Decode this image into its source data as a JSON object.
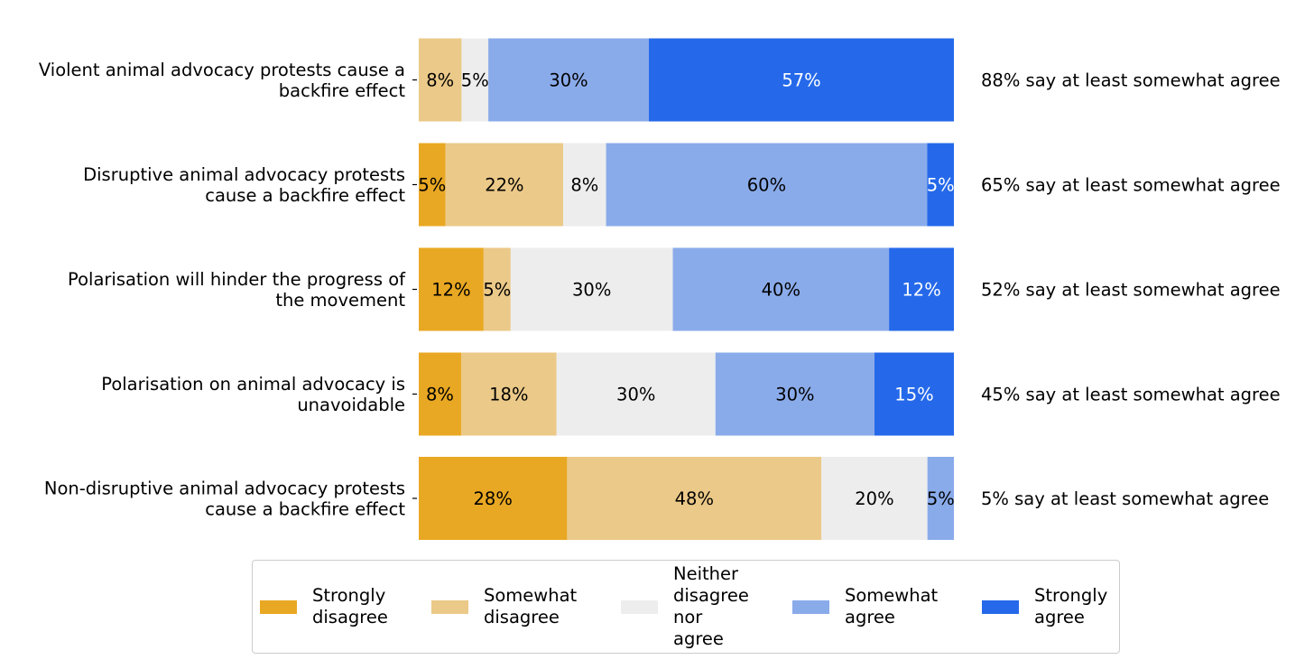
{
  "chart_data": {
    "type": "bar",
    "orientation": "horizontal",
    "stacked": true,
    "title": "",
    "xlabel": "",
    "ylabel": "",
    "xlim": [
      0,
      100
    ],
    "grid": false,
    "legend_position": "bottom-center",
    "categories": [
      "Violent animal advocacy protests cause a\nbackfire effect",
      "Disruptive animal advocacy protests\ncause a backfire effect",
      "Polarisation will hinder the progress of\nthe movement",
      "Polarisation on animal advocacy is\nunavoidable",
      "Non-disruptive animal advocacy protests\ncause a backfire effect"
    ],
    "series": [
      {
        "name": "Strongly disagree",
        "legend_label": "Strongly\ndisagree",
        "color": "#E9A823",
        "text_color": "#000000",
        "values": [
          0,
          5,
          12,
          8,
          28
        ]
      },
      {
        "name": "Somewhat disagree",
        "legend_label": "Somewhat\ndisagree",
        "color": "#EBC988",
        "text_color": "#000000",
        "values": [
          8,
          22,
          5,
          18,
          48
        ]
      },
      {
        "name": "Neither disagree nor agree",
        "legend_label": "Neither\ndisagree\nnor\nagree",
        "color": "#EDEDED",
        "text_color": "#000000",
        "values": [
          5,
          8,
          30,
          30,
          20
        ]
      },
      {
        "name": "Somewhat agree",
        "legend_label": "Somewhat\nagree",
        "color": "#8AABEA",
        "text_color": "#000000",
        "values": [
          30,
          60,
          40,
          30,
          5
        ]
      },
      {
        "name": "Strongly agree",
        "legend_label": "Strongly\nagree",
        "color": "#2569EA",
        "text_color": "#FFFFFF",
        "values": [
          57,
          5,
          12,
          15,
          0
        ]
      }
    ],
    "annotations": [
      "88% say at least somewhat agree",
      "65% say at least somewhat agree",
      "52% say at least somewhat agree",
      "45% say at least somewhat agree",
      "5% say at least somewhat agree"
    ],
    "value_label_suffix": "%"
  }
}
